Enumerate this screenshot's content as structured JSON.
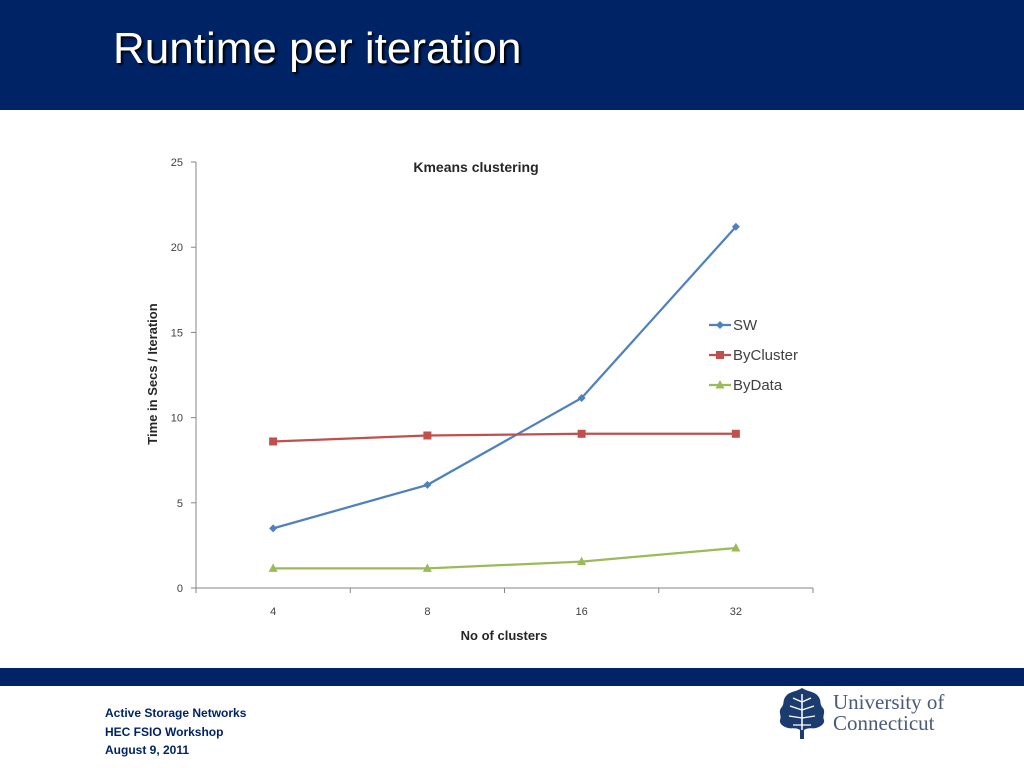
{
  "slide": {
    "title": "Runtime per iteration",
    "header_color": "#002366",
    "footer": {
      "lines": [
        "Active Storage Networks",
        "HEC FSIO Workshop",
        "August 9, 2011"
      ]
    },
    "logo": {
      "line1": "University of",
      "line2": "Connecticut",
      "icon": "oak-leaf-icon"
    }
  },
  "chart_data": {
    "type": "line",
    "title": "Kmeans clustering",
    "xlabel": "No of clusters",
    "ylabel": "Time in Secs / Iteration",
    "categories": [
      "4",
      "8",
      "16",
      "32"
    ],
    "ylim": [
      0,
      25
    ],
    "yticks": [
      0,
      5,
      10,
      15,
      20,
      25
    ],
    "grid": false,
    "legend_position": "right",
    "series": [
      {
        "name": "SW",
        "values": [
          3.5,
          6.05,
          11.15,
          21.2
        ],
        "color": "#4f81bd",
        "marker": "diamond"
      },
      {
        "name": "ByCluster",
        "values": [
          8.6,
          8.95,
          9.05,
          9.05
        ],
        "color": "#c0504d",
        "marker": "square"
      },
      {
        "name": "ByData",
        "values": [
          1.15,
          1.15,
          1.55,
          2.35
        ],
        "color": "#9bbb59",
        "marker": "triangle"
      }
    ]
  }
}
